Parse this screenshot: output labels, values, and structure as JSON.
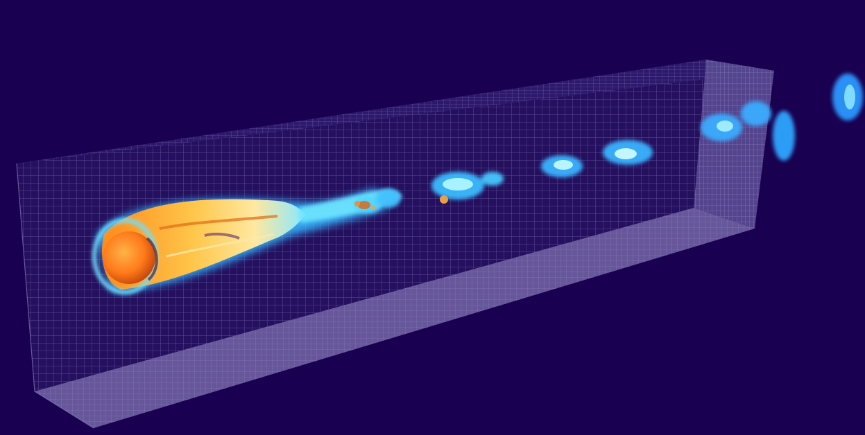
{
  "scene": {
    "background_color": "#1a0050",
    "mesh_line_color": "#5a4a8e",
    "mesh_fill_color": "#2a1670",
    "floor_fill_color": "#6c5aa0",
    "sphere_color": "#ff7a1a",
    "wake_hot_color": "#ffd24a",
    "wake_cool_color": "#4fd6ff"
  }
}
